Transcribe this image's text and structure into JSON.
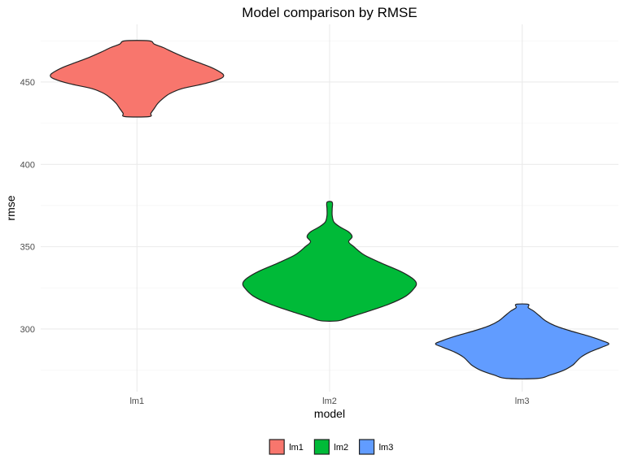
{
  "chart_data": {
    "type": "violin",
    "title": "Model comparison by RMSE",
    "xlabel": "model",
    "ylabel": "rmse",
    "categories": [
      "lm1",
      "lm2",
      "lm3"
    ],
    "ylim": [
      262,
      485
    ],
    "y_ticks": [
      300,
      350,
      400,
      450
    ],
    "grid": true,
    "legend": {
      "position": "bottom",
      "entries": [
        "lm1",
        "lm2",
        "lm3"
      ]
    },
    "series": [
      {
        "name": "lm1",
        "color": "#F8766D",
        "range": [
          429,
          475
        ],
        "density": [
          [
            429,
            0.14
          ],
          [
            431,
            0.16
          ],
          [
            434,
            0.2
          ],
          [
            437,
            0.24
          ],
          [
            440,
            0.3
          ],
          [
            443,
            0.38
          ],
          [
            446,
            0.52
          ],
          [
            449,
            0.78
          ],
          [
            452,
            0.96
          ],
          [
            454,
            1.0
          ],
          [
            456,
            0.96
          ],
          [
            459,
            0.85
          ],
          [
            462,
            0.7
          ],
          [
            465,
            0.55
          ],
          [
            468,
            0.42
          ],
          [
            471,
            0.3
          ],
          [
            473,
            0.2
          ],
          [
            475,
            0.14
          ]
        ]
      },
      {
        "name": "lm2",
        "color": "#00BA38",
        "range": [
          305,
          377
        ],
        "density": [
          [
            305,
            0.1
          ],
          [
            307,
            0.22
          ],
          [
            310,
            0.4
          ],
          [
            315,
            0.68
          ],
          [
            320,
            0.88
          ],
          [
            325,
            0.98
          ],
          [
            328,
            1.0
          ],
          [
            331,
            0.95
          ],
          [
            335,
            0.82
          ],
          [
            340,
            0.6
          ],
          [
            345,
            0.4
          ],
          [
            350,
            0.28
          ],
          [
            353,
            0.22
          ],
          [
            356,
            0.26
          ],
          [
            359,
            0.22
          ],
          [
            362,
            0.12
          ],
          [
            365,
            0.05
          ],
          [
            369,
            0.03
          ],
          [
            373,
            0.03
          ],
          [
            377,
            0.03
          ]
        ]
      },
      {
        "name": "lm3",
        "color": "#619CFF",
        "range": [
          270,
          315
        ],
        "density": [
          [
            270,
            0.18
          ],
          [
            272,
            0.32
          ],
          [
            275,
            0.48
          ],
          [
            278,
            0.58
          ],
          [
            280,
            0.62
          ],
          [
            283,
            0.68
          ],
          [
            286,
            0.78
          ],
          [
            289,
            0.92
          ],
          [
            291,
            1.0
          ],
          [
            293,
            0.92
          ],
          [
            296,
            0.75
          ],
          [
            299,
            0.55
          ],
          [
            302,
            0.38
          ],
          [
            305,
            0.27
          ],
          [
            308,
            0.2
          ],
          [
            311,
            0.13
          ],
          [
            313,
            0.07
          ],
          [
            315,
            0.07
          ]
        ]
      }
    ]
  }
}
